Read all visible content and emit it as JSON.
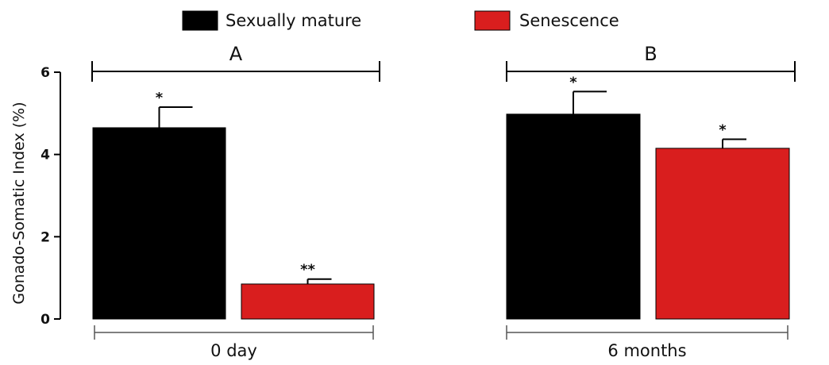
{
  "chart_data": {
    "type": "bar",
    "ylabel": "Gonado-Somatic Index (%)",
    "ylim": [
      0,
      6
    ],
    "yticks": [
      0,
      2,
      4,
      6
    ],
    "grid": false,
    "legend_position": "top",
    "categories": [
      "0 day",
      "6 months"
    ],
    "group_labels": [
      "A",
      "B"
    ],
    "series": [
      {
        "name": "Sexually mature",
        "color": "#000000",
        "values": [
          4.65,
          4.98
        ],
        "errors": [
          0.5,
          0.55
        ],
        "significance": [
          "*",
          "*"
        ]
      },
      {
        "name": "Senescence",
        "color": "#d91e1e",
        "values": [
          0.85,
          4.15
        ],
        "errors": [
          0.12,
          0.22
        ],
        "significance": [
          "**",
          "*"
        ]
      }
    ]
  }
}
